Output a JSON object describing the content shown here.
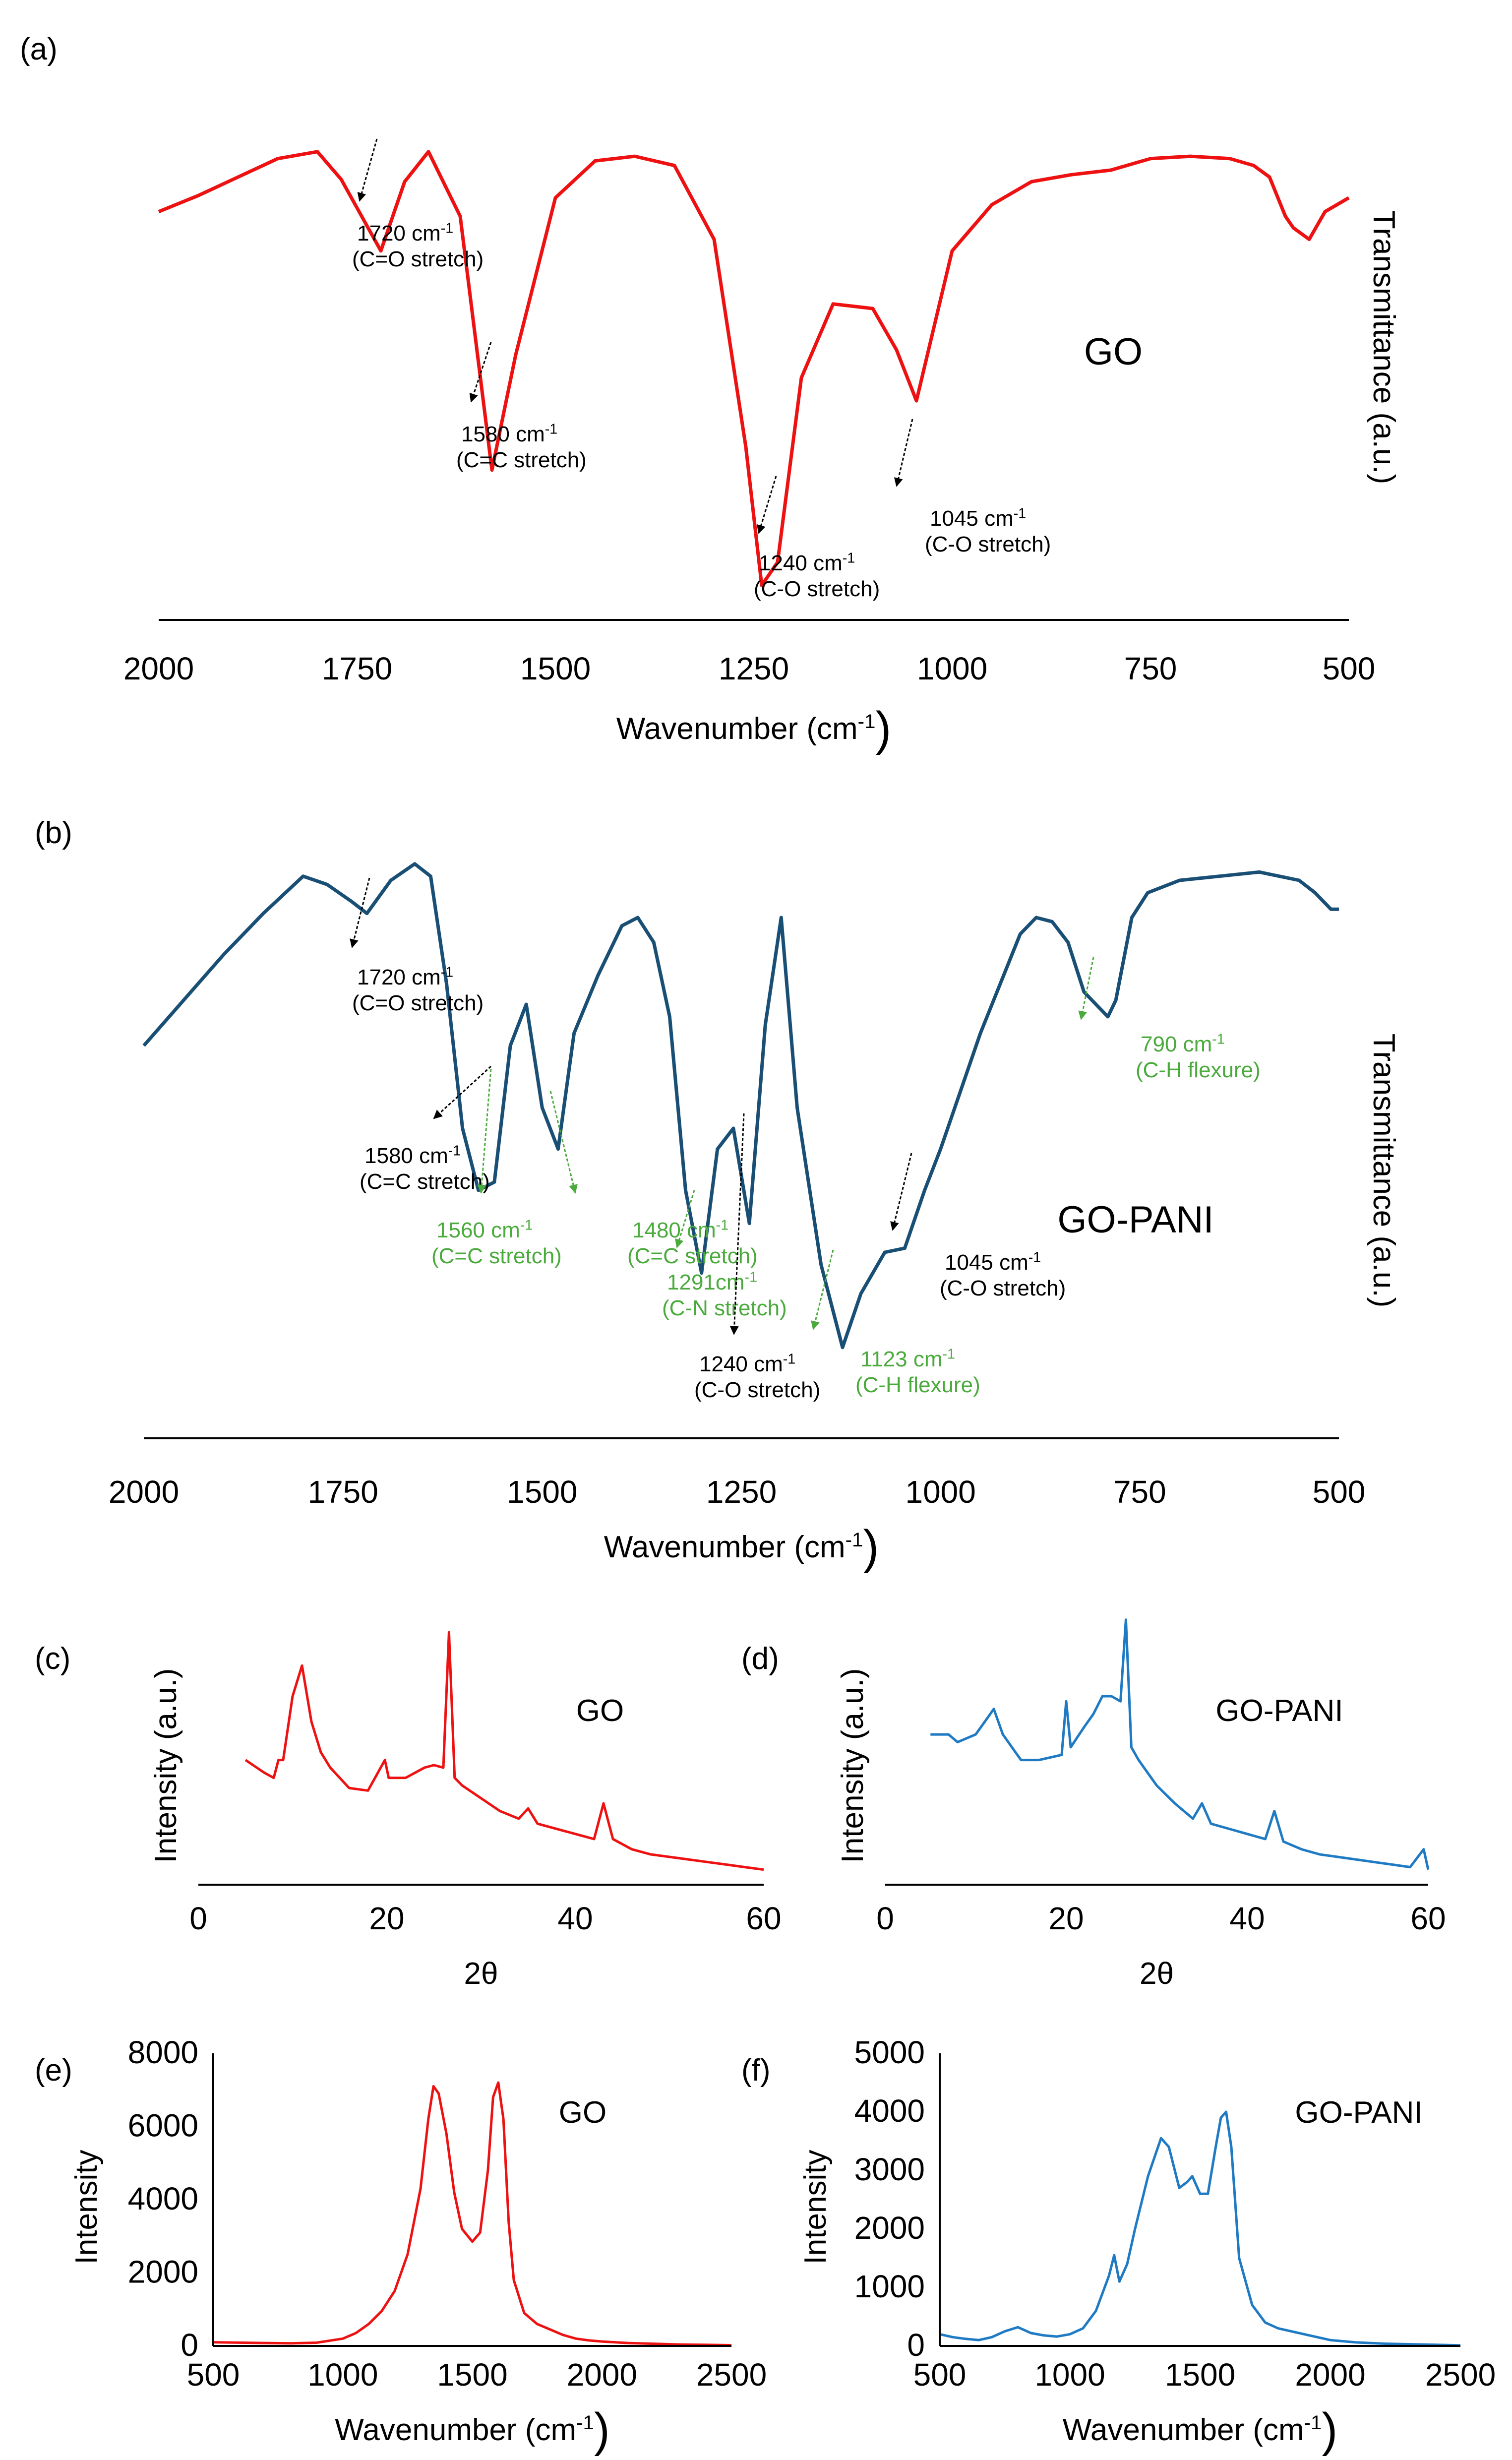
{
  "colors": {
    "go": "#ee1111",
    "go_pani_ftir": "#1a4f75",
    "go_pani": "#1f7ac4",
    "annotation": "#000000",
    "annotation_green": "#4aaa3c"
  },
  "chart_data": [
    {
      "panel": "(a)",
      "type": "line",
      "sample": "GO",
      "xlabel": "Wavenumber (cm",
      "xlabel_sup": "-1",
      "xlabel_end": ")",
      "ylabel": "Transmittance (a.u.)",
      "xlim": [
        2000,
        500
      ],
      "x_reversed": true,
      "xticks": [
        "2000",
        "1750",
        "1500",
        "1250",
        "1000",
        "750",
        "500"
      ],
      "series": [
        {
          "color": "#ee1111",
          "x": [
            2000,
            1950,
            1900,
            1850,
            1800,
            1770,
            1720,
            1690,
            1660,
            1620,
            1580,
            1550,
            1500,
            1450,
            1400,
            1350,
            1300,
            1260,
            1240,
            1220,
            1190,
            1150,
            1100,
            1070,
            1045,
            1000,
            950,
            900,
            850,
            800,
            750,
            700,
            650,
            620,
            600,
            580,
            570,
            550,
            530,
            500
          ],
          "y": [
            0.72,
            0.79,
            0.87,
            0.95,
            0.98,
            0.86,
            0.55,
            0.85,
            0.98,
            0.7,
            -0.4,
            0.1,
            0.78,
            0.94,
            0.96,
            0.92,
            0.6,
            -0.3,
            -0.9,
            -0.8,
            0.0,
            0.32,
            0.3,
            0.12,
            -0.1,
            0.55,
            0.75,
            0.85,
            0.88,
            0.9,
            0.95,
            0.96,
            0.95,
            0.92,
            0.87,
            0.7,
            0.65,
            0.6,
            0.72,
            0.78
          ]
        }
      ],
      "annotations": [
        {
          "text": "1720 cm",
          "sup": "-1",
          "text2": "(C=O stretch)",
          "green": false
        },
        {
          "text": "1580 cm",
          "sup": "-1",
          "text2": "(C=C stretch)",
          "green": false
        },
        {
          "text": "1240 cm",
          "sup": "-1",
          "text2": "(C-O stretch)",
          "green": false
        },
        {
          "text": "1045 cm",
          "sup": "-1",
          "text2": "(C-O stretch)",
          "green": false
        }
      ]
    },
    {
      "panel": "(b)",
      "type": "line",
      "sample": "GO-PANI",
      "xlabel": "Wavenumber (cm",
      "xlabel_sup": "-1",
      "xlabel_end": ")",
      "ylabel": "Transmittance (a.u.)",
      "xlim": [
        2000,
        500
      ],
      "x_reversed": true,
      "xticks": [
        "2000",
        "1750",
        "1500",
        "1250",
        "1000",
        "750",
        "500"
      ],
      "series": [
        {
          "color": "#1a4f75",
          "x": [
            2000,
            1950,
            1900,
            1850,
            1800,
            1770,
            1740,
            1720,
            1690,
            1660,
            1640,
            1620,
            1600,
            1580,
            1560,
            1540,
            1520,
            1500,
            1480,
            1460,
            1430,
            1400,
            1380,
            1360,
            1340,
            1320,
            1300,
            1280,
            1260,
            1240,
            1220,
            1200,
            1180,
            1150,
            1123,
            1100,
            1070,
            1045,
            1020,
            1000,
            950,
            900,
            880,
            860,
            840,
            820,
            800,
            790,
            780,
            760,
            740,
            700,
            650,
            600,
            550,
            530,
            510,
            500
          ],
          "y": [
            0.55,
            0.66,
            0.77,
            0.87,
            0.96,
            0.94,
            0.9,
            0.87,
            0.95,
            0.99,
            0.96,
            0.7,
            0.35,
            0.2,
            0.22,
            0.55,
            0.65,
            0.4,
            0.3,
            0.58,
            0.72,
            0.84,
            0.86,
            0.8,
            0.62,
            0.2,
            0.0,
            0.3,
            0.35,
            0.12,
            0.6,
            0.86,
            0.4,
            0.02,
            -0.18,
            -0.05,
            0.05,
            0.06,
            0.2,
            0.3,
            0.58,
            0.82,
            0.86,
            0.85,
            0.8,
            0.68,
            0.64,
            0.62,
            0.66,
            0.86,
            0.92,
            0.95,
            0.96,
            0.97,
            0.95,
            0.92,
            0.88,
            0.88
          ]
        }
      ],
      "annotations": [
        {
          "text": "1720 cm",
          "sup": "-1",
          "text2": "(C=O stretch)",
          "green": false
        },
        {
          "text": "1580 cm",
          "sup": "-1",
          "text2": "(C=C stretch)",
          "green": false
        },
        {
          "text": "1560 cm",
          "sup": "-1",
          "text2": "(C=C stretch)",
          "green": true
        },
        {
          "text": "1480 cm",
          "sup": "-1",
          "text2": "(C=C stretch)",
          "green": true
        },
        {
          "text": "1291cm",
          "sup": "-1",
          "text2": "(C-N stretch)",
          "green": true
        },
        {
          "text": "1240 cm",
          "sup": "-1",
          "text2": "(C-O stretch)",
          "green": false
        },
        {
          "text": "1123 cm",
          "sup": "-1",
          "text2": "(C-H flexure)",
          "green": true
        },
        {
          "text": "1045 cm",
          "sup": "-1",
          "text2": "(C-O stretch)",
          "green": false
        },
        {
          "text": "790 cm",
          "sup": "-1",
          "text2": "(C-H flexure)",
          "green": true
        }
      ]
    },
    {
      "panel": "(c)",
      "type": "line",
      "sample": "GO",
      "xlabel": "2θ",
      "ylabel": "Intensity (a.u.)",
      "xlim": [
        0,
        60
      ],
      "xticks": [
        "0",
        "20",
        "40",
        "60"
      ],
      "series": [
        {
          "color": "#ee1111",
          "x": [
            5,
            7,
            8,
            8.5,
            9,
            10,
            11,
            12,
            13,
            14,
            16,
            18,
            19.8,
            20.2,
            22,
            24,
            25,
            26,
            26.6,
            27.2,
            28,
            30,
            32,
            34,
            35,
            36,
            38,
            40,
            42,
            43,
            44,
            46,
            48,
            50,
            52,
            54,
            56,
            58,
            60
          ],
          "y": [
            0.45,
            0.4,
            0.38,
            0.45,
            0.45,
            0.7,
            0.82,
            0.6,
            0.48,
            0.42,
            0.34,
            0.33,
            0.45,
            0.38,
            0.38,
            0.42,
            0.43,
            0.42,
            0.95,
            0.38,
            0.35,
            0.3,
            0.25,
            0.22,
            0.26,
            0.2,
            0.18,
            0.16,
            0.14,
            0.28,
            0.14,
            0.1,
            0.08,
            0.07,
            0.06,
            0.05,
            0.04,
            0.03,
            0.02
          ]
        }
      ]
    },
    {
      "panel": "(d)",
      "type": "line",
      "sample": "GO-PANI",
      "xlabel": "2θ",
      "ylabel": "Intensity (a.u.)",
      "xlim": [
        0,
        60
      ],
      "xticks": [
        "0",
        "20",
        "40",
        "60"
      ],
      "series": [
        {
          "color": "#1f7ac4",
          "x": [
            5,
            7,
            8,
            10,
            11,
            12,
            13,
            15,
            17,
            19.5,
            20,
            20.5,
            22,
            23,
            24,
            25,
            26,
            26.6,
            27.2,
            28,
            30,
            32,
            34,
            35,
            36,
            38,
            40,
            42,
            43,
            44,
            46,
            48,
            50,
            52,
            54,
            56,
            58,
            59.5,
            60
          ],
          "y": [
            0.55,
            0.55,
            0.52,
            0.55,
            0.6,
            0.65,
            0.55,
            0.45,
            0.45,
            0.47,
            0.68,
            0.5,
            0.58,
            0.63,
            0.7,
            0.7,
            0.68,
            1.0,
            0.5,
            0.45,
            0.35,
            0.28,
            0.22,
            0.28,
            0.2,
            0.18,
            0.16,
            0.14,
            0.25,
            0.13,
            0.1,
            0.08,
            0.07,
            0.06,
            0.05,
            0.04,
            0.03,
            0.1,
            0.02
          ]
        }
      ]
    },
    {
      "panel": "(e)",
      "type": "line",
      "sample": "GO",
      "xlabel": "Wavenumber  (cm",
      "xlabel_sup": "-1",
      "xlabel_end": ")",
      "ylabel": "Intensity",
      "xlim": [
        500,
        2500
      ],
      "ylim": [
        0,
        8000
      ],
      "xticks": [
        "500",
        "1000",
        "1500",
        "2000",
        "2500"
      ],
      "yticks": [
        "0",
        "2000",
        "4000",
        "6000",
        "8000"
      ],
      "series": [
        {
          "color": "#ee1111",
          "x": [
            500,
            600,
            700,
            800,
            900,
            1000,
            1050,
            1100,
            1150,
            1200,
            1250,
            1300,
            1330,
            1350,
            1370,
            1400,
            1430,
            1460,
            1500,
            1530,
            1560,
            1580,
            1600,
            1620,
            1640,
            1660,
            1700,
            1750,
            1800,
            1850,
            1900,
            1950,
            2000,
            2100,
            2200,
            2300,
            2400,
            2500
          ],
          "y": [
            100,
            90,
            80,
            70,
            90,
            200,
            350,
            600,
            950,
            1500,
            2500,
            4300,
            6200,
            7100,
            6900,
            5800,
            4200,
            3200,
            2850,
            3100,
            4800,
            6800,
            7200,
            6200,
            3400,
            1800,
            900,
            600,
            450,
            300,
            200,
            150,
            120,
            80,
            60,
            40,
            30,
            20
          ]
        }
      ]
    },
    {
      "panel": "(f)",
      "type": "line",
      "sample": "GO-PANI",
      "xlabel": "Wavenumber (cm",
      "xlabel_sup": "-1",
      "xlabel_end": ")",
      "ylabel": "Intensity",
      "xlim": [
        500,
        2500
      ],
      "ylim": [
        0,
        5000
      ],
      "xticks": [
        "500",
        "1000",
        "1500",
        "2000",
        "2500"
      ],
      "yticks": [
        "0",
        "1000",
        "2000",
        "3000",
        "4000",
        "5000"
      ],
      "series": [
        {
          "color": "#1f7ac4",
          "x": [
            500,
            550,
            600,
            650,
            700,
            750,
            800,
            850,
            900,
            950,
            1000,
            1050,
            1100,
            1150,
            1170,
            1190,
            1220,
            1250,
            1300,
            1350,
            1380,
            1420,
            1450,
            1470,
            1500,
            1530,
            1560,
            1580,
            1600,
            1620,
            1650,
            1700,
            1750,
            1800,
            1900,
            2000,
            2100,
            2200,
            2300,
            2400,
            2500
          ],
          "y": [
            200,
            150,
            120,
            100,
            150,
            250,
            320,
            220,
            180,
            160,
            200,
            300,
            600,
            1200,
            1550,
            1100,
            1400,
            2000,
            2900,
            3550,
            3400,
            2700,
            2800,
            2900,
            2600,
            2600,
            3400,
            3900,
            4000,
            3400,
            1500,
            700,
            400,
            300,
            200,
            100,
            60,
            40,
            30,
            20,
            10
          ]
        }
      ]
    }
  ]
}
